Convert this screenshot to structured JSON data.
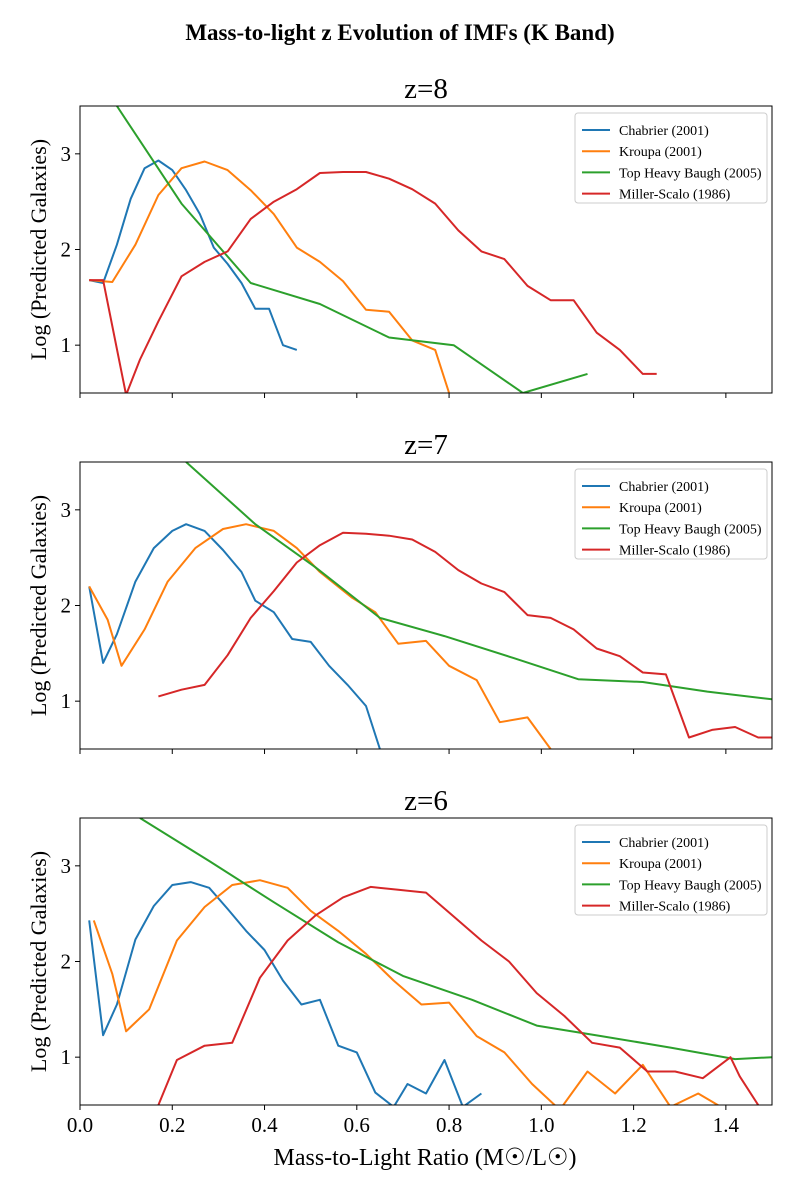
{
  "figure_title": "Mass-to-light z Evolution of IMFs (K Band)",
  "xlabel": "Mass-to-Light Ratio (M☉/L☉)",
  "ylabel": "Log (Predicted Galaxies)",
  "colors": {
    "Chabrier (2001)": "#1f77b4",
    "Kroupa (2001)": "#ff7f0e",
    "Top Heavy Baugh (2005)": "#2ca02c",
    "Miller-Scalo (1986)": "#d62728"
  },
  "chart_data": [
    {
      "type": "line",
      "title": "z=8",
      "xlabel": "",
      "ylabel": "Log (Predicted Galaxies)",
      "xlim": [
        0,
        1.5
      ],
      "ylim": [
        0.5,
        3.5
      ],
      "xticks": [
        "0.0",
        "0.2",
        "0.4",
        "0.6",
        "0.8",
        "1.0",
        "1.2",
        "1.4"
      ],
      "yticks": [
        1,
        2,
        3
      ],
      "legend": "top-right",
      "series": [
        {
          "name": "Chabrier (2001)",
          "x": [
            0.02,
            0.05,
            0.08,
            0.11,
            0.14,
            0.17,
            0.2,
            0.23,
            0.26,
            0.29,
            0.32,
            0.35,
            0.38,
            0.41,
            0.44,
            0.47,
            0.5
          ],
          "y": [
            1.68,
            1.65,
            2.05,
            2.53,
            2.85,
            2.93,
            2.83,
            2.62,
            2.37,
            2.02,
            1.85,
            1.65,
            1.38,
            1.38,
            1.0,
            0.95,
            null
          ]
        },
        {
          "name": "Kroupa (2001)",
          "x": [
            0.02,
            0.07,
            0.12,
            0.17,
            0.22,
            0.27,
            0.32,
            0.37,
            0.42,
            0.47,
            0.52,
            0.57,
            0.62,
            0.67,
            0.72,
            0.77,
            0.8
          ],
          "y": [
            1.68,
            1.66,
            2.05,
            2.57,
            2.85,
            2.92,
            2.83,
            2.62,
            2.37,
            2.02,
            1.87,
            1.67,
            1.37,
            1.35,
            1.05,
            0.95,
            0.5
          ]
        },
        {
          "name": "Top Heavy Baugh (2005)",
          "x": [
            0.08,
            0.22,
            0.37,
            0.52,
            0.67,
            0.81,
            0.96,
            1.1
          ],
          "y": [
            3.5,
            2.48,
            1.65,
            1.43,
            1.08,
            1.0,
            0.5,
            0.7
          ]
        },
        {
          "name": "Miller-Scalo (1986)",
          "x": [
            0.02,
            0.05,
            0.07,
            0.1,
            0.13,
            0.17,
            0.22,
            0.27,
            0.32,
            0.37,
            0.42,
            0.47,
            0.52,
            0.57,
            0.62,
            0.67,
            0.72,
            0.77,
            0.82,
            0.87,
            0.92,
            0.97,
            1.02,
            1.07,
            1.12,
            1.17,
            1.22,
            1.25
          ],
          "y": [
            1.68,
            1.68,
            1.2,
            0.48,
            0.85,
            1.25,
            1.72,
            1.87,
            1.98,
            2.32,
            2.5,
            2.63,
            2.8,
            2.81,
            2.81,
            2.74,
            2.63,
            2.48,
            2.2,
            1.98,
            1.9,
            1.62,
            1.47,
            1.47,
            1.13,
            0.95,
            0.7,
            0.7
          ]
        }
      ]
    },
    {
      "type": "line",
      "title": "z=7",
      "xlabel": "",
      "ylabel": "Log (Predicted Galaxies)",
      "xlim": [
        0,
        1.5
      ],
      "ylim": [
        0.5,
        3.5
      ],
      "xticks": [
        "0.0",
        "0.2",
        "0.4",
        "0.6",
        "0.8",
        "1.0",
        "1.2",
        "1.4"
      ],
      "yticks": [
        1,
        2,
        3
      ],
      "legend": "top-right",
      "series": [
        {
          "name": "Chabrier (2001)",
          "x": [
            0.02,
            0.05,
            0.08,
            0.12,
            0.16,
            0.2,
            0.23,
            0.27,
            0.31,
            0.35,
            0.38,
            0.42,
            0.46,
            0.5,
            0.54,
            0.58,
            0.62,
            0.65
          ],
          "y": [
            2.2,
            1.4,
            1.7,
            2.25,
            2.6,
            2.78,
            2.85,
            2.78,
            2.58,
            2.35,
            2.05,
            1.93,
            1.65,
            1.62,
            1.37,
            1.17,
            0.95,
            0.5
          ]
        },
        {
          "name": "Kroupa (2001)",
          "x": [
            0.02,
            0.06,
            0.09,
            0.14,
            0.19,
            0.25,
            0.31,
            0.36,
            0.42,
            0.47,
            0.52,
            0.59,
            0.64,
            0.69,
            0.75,
            0.8,
            0.86,
            0.91,
            0.97,
            1.02
          ],
          "y": [
            2.2,
            1.85,
            1.37,
            1.75,
            2.25,
            2.6,
            2.8,
            2.85,
            2.78,
            2.6,
            2.35,
            2.08,
            1.93,
            1.6,
            1.63,
            1.37,
            1.22,
            0.78,
            0.83,
            0.5
          ]
        },
        {
          "name": "Top Heavy Baugh (2005)",
          "x": [
            0.23,
            0.38,
            0.51,
            0.65,
            0.79,
            0.94,
            1.08,
            1.22,
            1.36,
            1.5
          ],
          "y": [
            3.5,
            2.85,
            2.4,
            1.87,
            1.68,
            1.45,
            1.23,
            1.2,
            1.1,
            1.02
          ]
        },
        {
          "name": "Miller-Scalo (1986)",
          "x": [
            0.17,
            0.22,
            0.27,
            0.32,
            0.37,
            0.42,
            0.47,
            0.52,
            0.57,
            0.62,
            0.67,
            0.72,
            0.77,
            0.82,
            0.87,
            0.92,
            0.97,
            1.02,
            1.07,
            1.12,
            1.17,
            1.22,
            1.27,
            1.32,
            1.37,
            1.42,
            1.47,
            1.5
          ],
          "y": [
            1.05,
            1.12,
            1.17,
            1.48,
            1.87,
            2.15,
            2.45,
            2.63,
            2.76,
            2.75,
            2.73,
            2.69,
            2.56,
            2.37,
            2.23,
            2.14,
            1.9,
            1.87,
            1.75,
            1.55,
            1.47,
            1.3,
            1.28,
            0.62,
            0.7,
            0.73,
            0.62,
            0.62
          ]
        }
      ]
    },
    {
      "type": "line",
      "title": "z=6",
      "xlabel": "Mass-to-Light Ratio (M☉/L☉)",
      "ylabel": "Log (Predicted Galaxies)",
      "xlim": [
        0,
        1.5
      ],
      "ylim": [
        0.5,
        3.5
      ],
      "xticks": [
        "0.0",
        "0.2",
        "0.4",
        "0.6",
        "0.8",
        "1.0",
        "1.2",
        "1.4"
      ],
      "yticks": [
        1,
        2,
        3
      ],
      "legend": "top-right",
      "series": [
        {
          "name": "Chabrier (2001)",
          "x": [
            0.02,
            0.05,
            0.08,
            0.12,
            0.16,
            0.2,
            0.24,
            0.28,
            0.32,
            0.36,
            0.4,
            0.44,
            0.48,
            0.52,
            0.56,
            0.6,
            0.64,
            0.68,
            0.71,
            0.75,
            0.79,
            0.83,
            0.87
          ],
          "y": [
            2.43,
            1.23,
            1.55,
            2.23,
            2.58,
            2.8,
            2.83,
            2.77,
            2.55,
            2.32,
            2.12,
            1.8,
            1.55,
            1.6,
            1.12,
            1.05,
            0.63,
            0.48,
            0.72,
            0.62,
            0.97,
            0.48,
            0.62
          ]
        },
        {
          "name": "Kroupa (2001)",
          "x": [
            0.03,
            0.07,
            0.1,
            0.15,
            0.21,
            0.27,
            0.33,
            0.39,
            0.45,
            0.5,
            0.56,
            0.62,
            0.68,
            0.74,
            0.8,
            0.86,
            0.92,
            0.98,
            1.04,
            1.1,
            1.16,
            1.22,
            1.28,
            1.34,
            1.4
          ],
          "y": [
            2.43,
            1.87,
            1.27,
            1.5,
            2.22,
            2.57,
            2.8,
            2.85,
            2.77,
            2.53,
            2.32,
            2.08,
            1.8,
            1.55,
            1.57,
            1.22,
            1.05,
            0.72,
            0.45,
            0.85,
            0.62,
            0.92,
            0.48,
            0.62,
            0.45
          ]
        },
        {
          "name": "Top Heavy Baugh (2005)",
          "x": [
            0.13,
            0.28,
            0.42,
            0.56,
            0.7,
            0.85,
            0.99,
            1.13,
            1.28,
            1.42,
            1.5
          ],
          "y": [
            3.5,
            3.05,
            2.62,
            2.2,
            1.85,
            1.6,
            1.33,
            1.22,
            1.1,
            0.98,
            1.0
          ]
        },
        {
          "name": "Miller-Scalo (1986)",
          "x": [
            0.17,
            0.21,
            0.27,
            0.33,
            0.39,
            0.45,
            0.51,
            0.57,
            0.63,
            0.69,
            0.75,
            0.81,
            0.87,
            0.93,
            0.99,
            1.05,
            1.11,
            1.17,
            1.23,
            1.29,
            1.35,
            1.41,
            1.43,
            1.47
          ],
          "y": [
            0.5,
            0.97,
            1.12,
            1.15,
            1.83,
            2.22,
            2.48,
            2.67,
            2.78,
            2.75,
            2.72,
            2.47,
            2.22,
            2.0,
            1.67,
            1.43,
            1.15,
            1.1,
            0.85,
            0.85,
            0.78,
            1.0,
            0.8,
            0.5
          ]
        }
      ]
    }
  ]
}
